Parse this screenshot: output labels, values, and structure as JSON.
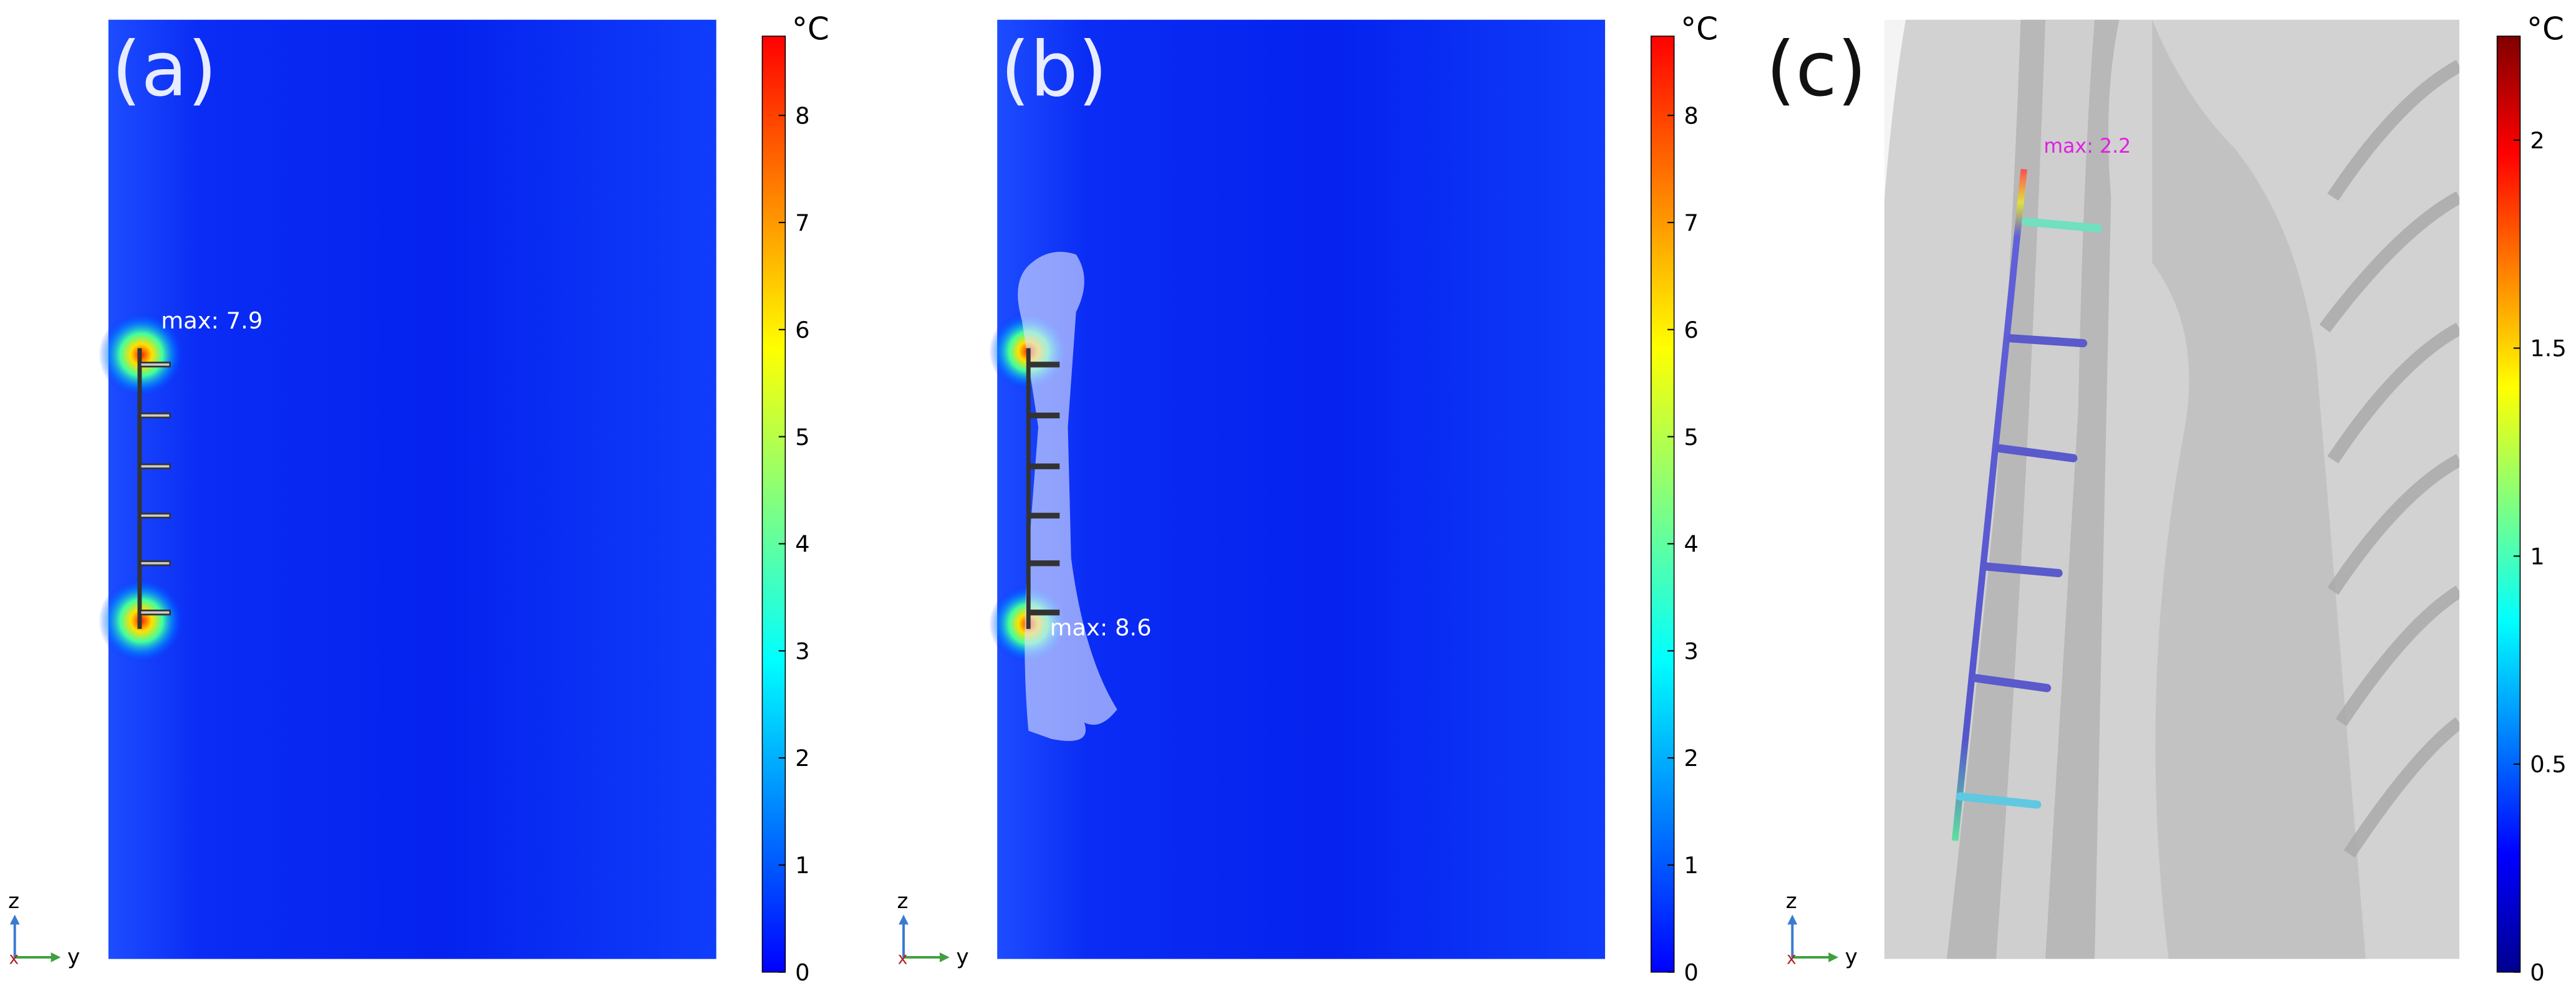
{
  "panels": [
    {
      "label": "(a)",
      "annotation": "max: 7.9",
      "colorbar": {
        "unit": "°C",
        "lim": [
          0,
          8.74
        ],
        "ticks": [
          0,
          1,
          2,
          3,
          4,
          5,
          6,
          7,
          8
        ],
        "colormap": [
          "#0000ff",
          "#0080ff",
          "#00ffff",
          "#80ff80",
          "#ffff00",
          "#ff8000",
          "#ff0000"
        ]
      },
      "axes": {
        "z": "z",
        "y": "y",
        "x": "x"
      }
    },
    {
      "label": "(b)",
      "annotation": "max: 8.6",
      "colorbar": {
        "unit": "°C",
        "lim": [
          0,
          8.74
        ],
        "ticks": [
          0,
          1,
          2,
          3,
          4,
          5,
          6,
          7,
          8
        ],
        "colormap": [
          "#0000ff",
          "#0080ff",
          "#00ffff",
          "#80ff80",
          "#ffff00",
          "#ff8000",
          "#ff0000"
        ]
      },
      "axes": {
        "z": "z",
        "y": "y",
        "x": "x"
      }
    },
    {
      "label": "(c)",
      "annotation": "max: 2.2",
      "colorbar": {
        "unit": "°C",
        "lim": [
          0,
          2.25
        ],
        "ticks": [
          0,
          0.5,
          1,
          1.5,
          2
        ],
        "colormap": [
          "#00008f",
          "#0000ff",
          "#0080ff",
          "#00ffff",
          "#80ff80",
          "#ffff00",
          "#ff8000",
          "#ff0000",
          "#800000"
        ]
      },
      "axes": {
        "z": "z",
        "y": "y",
        "x": "x"
      }
    }
  ]
}
